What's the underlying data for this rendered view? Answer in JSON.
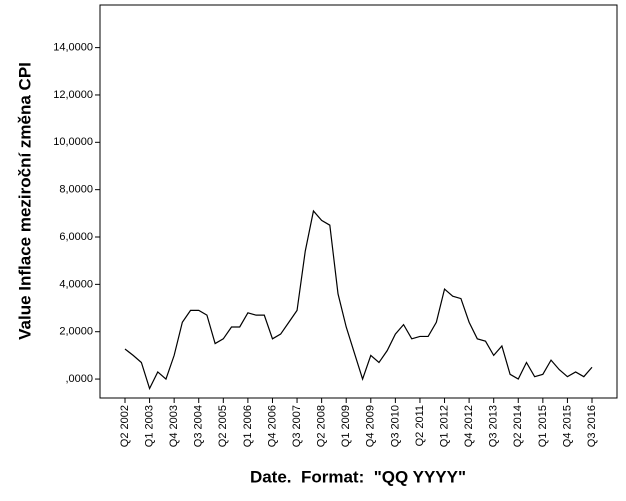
{
  "chart_data": {
    "type": "line",
    "x_label": "Date.  Format:  \"QQ YYYY\"",
    "y_label": "Value Inflace meziroční změna CPI",
    "categories": [
      "Q2 2002",
      null,
      null,
      "Q1 2003",
      null,
      null,
      "Q4 2003",
      null,
      null,
      "Q3 2004",
      null,
      null,
      "Q2 2005",
      null,
      null,
      "Q1 2006",
      null,
      null,
      "Q4 2006",
      null,
      null,
      "Q3 2007",
      null,
      null,
      "Q2 2008",
      null,
      null,
      "Q1 2009",
      null,
      null,
      "Q4 2009",
      null,
      null,
      "Q3 2010",
      null,
      null,
      "Q2 2011",
      null,
      null,
      "Q1 2012",
      null,
      null,
      "Q4 2012",
      null,
      null,
      "Q3 2013",
      null,
      null,
      "Q2 2014",
      null,
      null,
      "Q1 2015",
      null,
      null,
      "Q4 2015",
      null,
      null,
      "Q3 2016"
    ],
    "values": [
      1.27,
      1.0,
      0.7,
      -0.4,
      0.3,
      0.0,
      1.0,
      2.4,
      2.9,
      2.9,
      2.7,
      1.5,
      1.7,
      2.2,
      2.2,
      2.8,
      2.7,
      2.7,
      1.7,
      1.9,
      2.4,
      2.9,
      5.4,
      7.1,
      6.7,
      6.5,
      3.6,
      2.2,
      1.1,
      0.0,
      1.0,
      0.7,
      1.2,
      1.9,
      2.3,
      1.7,
      1.8,
      1.8,
      2.4,
      3.8,
      3.5,
      3.4,
      2.4,
      1.7,
      1.6,
      1.0,
      1.4,
      0.2,
      0.0,
      0.7,
      0.1,
      0.2,
      0.8,
      0.4,
      0.1,
      0.3,
      0.1,
      0.5
    ],
    "color": "#000000",
    "ylim": [
      -0.8,
      15.8
    ],
    "yticks": [
      {
        "value": 0,
        "label": ",0000"
      },
      {
        "value": 2,
        "label": "2,0000"
      },
      {
        "value": 4,
        "label": "4,0000"
      },
      {
        "value": 6,
        "label": "6,0000"
      },
      {
        "value": 8,
        "label": "8,0000"
      },
      {
        "value": 10,
        "label": "10,0000"
      },
      {
        "value": 12,
        "label": "12,0000"
      },
      {
        "value": 14,
        "label": "14,0000"
      }
    ],
    "grid": false
  }
}
